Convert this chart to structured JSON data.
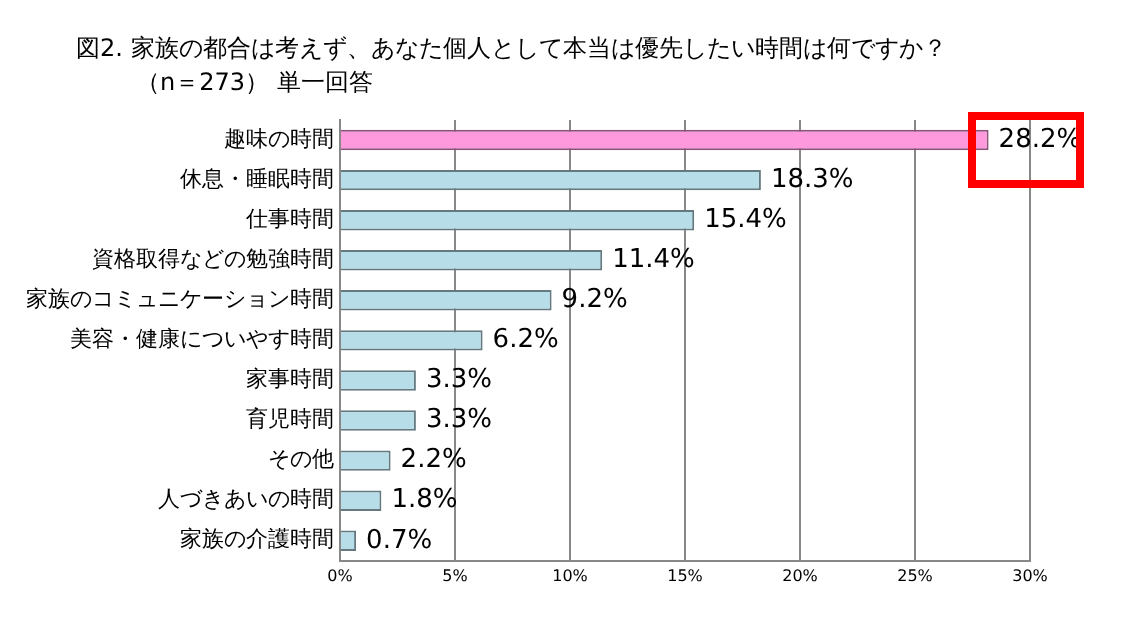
{
  "chart_data": {
    "type": "bar",
    "orientation": "horizontal",
    "title": "図2. 家族の都合は考えず、あなた個人として本当は優先したい時間は何ですか？",
    "subtitle": "（n＝273） 単一回答",
    "categories": [
      "趣味の時間",
      "休息・睡眠時間",
      "仕事時間",
      "資格取得などの勉強時間",
      "家族のコミュニケーション時間",
      "美容・健康についやす時間",
      "家事時間",
      "育児時間",
      "その他",
      "人づきあいの時間",
      "家族の介護時間"
    ],
    "values": [
      28.2,
      18.3,
      15.4,
      11.4,
      9.2,
      6.2,
      3.3,
      3.3,
      2.2,
      1.8,
      0.7
    ],
    "value_labels": [
      "28.2%",
      "18.3%",
      "15.4%",
      "11.4%",
      "9.2%",
      "6.2%",
      "3.3%",
      "3.3%",
      "2.2%",
      "1.8%",
      "0.7%"
    ],
    "colors": [
      "#ff99dd",
      "#b7dde8",
      "#b7dde8",
      "#b7dde8",
      "#b7dde8",
      "#b7dde8",
      "#b7dde8",
      "#b7dde8",
      "#b7dde8",
      "#b7dde8",
      "#b7dde8"
    ],
    "xlim": [
      0,
      30
    ],
    "xticks": [
      {
        "value": 0,
        "label": "0%"
      },
      {
        "value": 5,
        "label": "5%"
      },
      {
        "value": 10,
        "label": "10%"
      },
      {
        "value": 15,
        "label": "15%"
      },
      {
        "value": 20,
        "label": "20%"
      },
      {
        "value": 25,
        "label": "25%"
      },
      {
        "value": 30,
        "label": "30%"
      }
    ],
    "grid": "x",
    "legend": false
  }
}
